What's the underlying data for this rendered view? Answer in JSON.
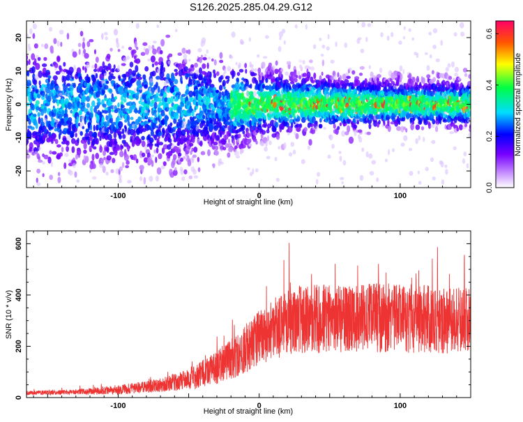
{
  "title": "S126.2025.285.04.29.G12",
  "chart_data": [
    {
      "type": "heatmap",
      "name": "spectrogram",
      "xlabel": "Height of straight line (km)",
      "ylabel": "Frequency (Hz)",
      "xlim": [
        -165,
        150
      ],
      "ylim": [
        -25,
        25
      ],
      "xticks": [
        "-100",
        "0",
        "100"
      ],
      "xtick_values": [
        -100,
        0,
        100
      ],
      "yticks": [
        "-20",
        "-10",
        "0",
        "10",
        "20"
      ],
      "ytick_values": [
        -20,
        -10,
        0,
        10,
        20
      ],
      "colorbar": {
        "label": "Normalized spectral amplitude",
        "range": [
          0,
          0.65
        ],
        "ticks": [
          "0.0",
          "0.2",
          "0.4",
          "0.6"
        ],
        "tick_values": [
          0.0,
          0.2,
          0.4,
          0.6
        ]
      }
    },
    {
      "type": "line",
      "name": "snr",
      "xlabel": "Height of straight line (km)",
      "ylabel": "SNR (10 * v/v)",
      "xlim": [
        -165,
        150
      ],
      "ylim": [
        0,
        650
      ],
      "xticks": [
        "-100",
        "0",
        "100"
      ],
      "xtick_values": [
        -100,
        0,
        100
      ],
      "yticks": [
        "0",
        "200",
        "400",
        "600"
      ],
      "ytick_values": [
        0,
        200,
        400,
        600
      ],
      "color": "#ee3333",
      "series_profile": {
        "x": [
          -165,
          -130,
          -100,
          -75,
          -50,
          -35,
          -20,
          -10,
          0,
          10,
          20,
          30,
          60,
          100,
          150
        ],
        "mean": [
          18,
          22,
          30,
          45,
          70,
          105,
          150,
          190,
          235,
          265,
          290,
          305,
          310,
          310,
          300
        ],
        "spread": [
          8,
          10,
          18,
          25,
          40,
          60,
          80,
          95,
          110,
          120,
          130,
          135,
          135,
          135,
          130
        ]
      }
    }
  ]
}
